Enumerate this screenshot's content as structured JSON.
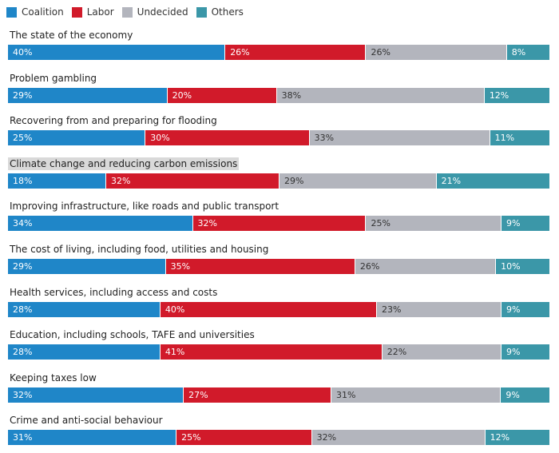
{
  "legend": [
    {
      "label": "Coalition",
      "color": "#1f86c8"
    },
    {
      "label": "Labor",
      "color": "#d11a2a"
    },
    {
      "label": "Undecided",
      "color": "#b3b5bd"
    },
    {
      "label": "Others",
      "color": "#3b97a8"
    }
  ],
  "chart_data": {
    "type": "bar",
    "stacked": true,
    "orientation": "horizontal",
    "series_order": [
      "Coalition",
      "Labor",
      "Undecided",
      "Others"
    ],
    "categories": [
      "The state of the economy",
      "Problem gambling",
      "Recovering from and preparing for flooding",
      "Climate change and reducing carbon emissions",
      "Improving infrastructure, like roads and public transport",
      "The cost of living, including food, utilities and housing",
      "Health services, including access and costs",
      "Education, including schools, TAFE and universities",
      "Keeping taxes low",
      "Crime and anti-social behaviour"
    ],
    "series": [
      {
        "name": "Coalition",
        "values": [
          40,
          29,
          25,
          18,
          34,
          29,
          28,
          28,
          32,
          31
        ],
        "labels": [
          "40%",
          "29%",
          "25%",
          "18%",
          "34%",
          "29%",
          "28%",
          "28%",
          "32%",
          "31%"
        ]
      },
      {
        "name": "Labor",
        "values": [
          26,
          20,
          30,
          32,
          32,
          35,
          40,
          41,
          27,
          25
        ],
        "labels": [
          "26%",
          "20%",
          "30%",
          "32%",
          "32%",
          "35%",
          "40%",
          "41%",
          "27%",
          "25%"
        ]
      },
      {
        "name": "Undecided",
        "values": [
          26,
          38,
          33,
          29,
          25,
          26,
          23,
          22,
          31,
          32
        ],
        "labels": [
          "26%",
          "38%",
          "33%",
          "29%",
          "25%",
          "26%",
          "23%",
          "22%",
          "31%",
          "32%"
        ]
      },
      {
        "name": "Others",
        "values": [
          8,
          12,
          11,
          21,
          9,
          10,
          9,
          9,
          9,
          12
        ],
        "labels": [
          "8%",
          "12%",
          "11%",
          "21%",
          "9%",
          "10%",
          "9%",
          "9%",
          "9%",
          "12%"
        ]
      }
    ],
    "highlighted_category": "Climate change and reducing carbon emissions"
  }
}
